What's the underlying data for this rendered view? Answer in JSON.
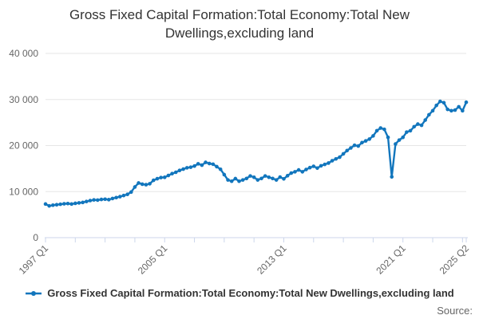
{
  "chart": {
    "title_lines": [
      "Gross Fixed Capital Formation:Total Economy:Total New",
      "Dwellings,excluding land"
    ],
    "source_label": "Source:"
  },
  "legend": {
    "series_label": "Gross Fixed Capital Formation:Total Economy:Total New Dwellings,excluding land"
  },
  "chart_data": {
    "type": "line",
    "title": "Gross Fixed Capital Formation:Total Economy:Total New Dwellings,excluding land",
    "xlabel": "",
    "ylabel": "",
    "x_frequency": "quarterly",
    "x_start": "1997 Q1",
    "x_end": "2025 Q2",
    "ylim": [
      0,
      40000
    ],
    "yticks": [
      0,
      10000,
      20000,
      30000,
      40000
    ],
    "ytick_labels": [
      "0",
      "10 000",
      "20 000",
      "30 000",
      "40 000"
    ],
    "xtick_labels": [
      {
        "index": 0,
        "label": "1997 Q1"
      },
      {
        "index": 32,
        "label": "2005 Q1"
      },
      {
        "index": 64,
        "label": "2013 Q1"
      },
      {
        "index": 96,
        "label": "2021 Q1"
      },
      {
        "index": 113,
        "label": "2025 Q2"
      }
    ],
    "minor_tick_step": 8,
    "grid": true,
    "legend_position": "bottom-center",
    "colors": {
      "line": "#1276bd",
      "grid": "#e6e6e6",
      "axis": "#ccd6eb",
      "tick_text": "#666666",
      "title_text": "#333333"
    },
    "series": [
      {
        "name": "Gross Fixed Capital Formation:Total Economy:Total New Dwellings,excluding land",
        "values": [
          7300,
          6900,
          7050,
          7150,
          7250,
          7350,
          7400,
          7300,
          7450,
          7550,
          7650,
          7850,
          8050,
          8200,
          8150,
          8300,
          8350,
          8250,
          8500,
          8700,
          8900,
          9150,
          9400,
          9900,
          11000,
          11870,
          11610,
          11500,
          11700,
          12450,
          12800,
          13050,
          13100,
          13500,
          13900,
          14200,
          14600,
          14880,
          15170,
          15300,
          15550,
          16030,
          15740,
          16350,
          16100,
          15950,
          15420,
          14850,
          13690,
          12530,
          12250,
          12820,
          12250,
          12530,
          12850,
          13400,
          13110,
          12530,
          12850,
          13400,
          13110,
          12850,
          12530,
          13160,
          12760,
          13450,
          14020,
          14300,
          14700,
          14300,
          14800,
          15200,
          15500,
          15100,
          15600,
          15900,
          16200,
          16700,
          17100,
          17470,
          18200,
          18910,
          19480,
          20060,
          19900,
          20630,
          21000,
          21400,
          22100,
          23220,
          23800,
          23520,
          21780,
          13200,
          20330,
          21190,
          21780,
          22920,
          23220,
          24090,
          24660,
          24400,
          25530,
          26690,
          27560,
          28720,
          29580,
          29290,
          27850,
          27560,
          27700,
          28420,
          27560,
          29400
        ]
      }
    ]
  }
}
